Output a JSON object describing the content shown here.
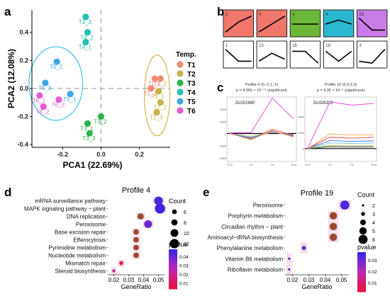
{
  "panel_labels": {
    "a": "a",
    "b": "b",
    "c": "c",
    "d": "d",
    "e": "e"
  },
  "chart_data": [
    {
      "type": "scatter",
      "panel": "a",
      "xlabel": "PCA1 (22.69%)",
      "ylabel": "PCA2 (12.08%)",
      "xlim": [
        -0.36,
        0.36
      ],
      "ylim": [
        -0.42,
        0.56
      ],
      "x_ticks": [
        -0.2,
        0.0,
        0.2
      ],
      "x_tick_labels": [
        "-0.2",
        "0.0",
        "0.2"
      ],
      "y_ticks": [
        -0.4,
        -0.2,
        0.0,
        0.2,
        0.4
      ],
      "y_tick_labels": [
        "-0.4",
        "-0.2",
        "0.0",
        "0.2",
        "0.4"
      ],
      "legend": {
        "title": "Temp.",
        "position": "right"
      },
      "series": [
        {
          "name": "T1",
          "color": "#F08B73",
          "points": [
            {
              "x": 0.28,
              "y": 0.07,
              "label": "T1_3"
            },
            {
              "x": 0.31,
              "y": 0.07,
              "label": "T1_2"
            },
            {
              "x": 0.26,
              "y": 0.0,
              "label": "T1_1"
            }
          ]
        },
        {
          "name": "T2",
          "color": "#C8B34A",
          "points": [
            {
              "x": 0.3,
              "y": -0.02,
              "label": "T2_1"
            },
            {
              "x": 0.31,
              "y": -0.1,
              "label": "T2_2"
            },
            {
              "x": 0.29,
              "y": -0.17,
              "label": "T2_3"
            }
          ]
        },
        {
          "name": "T3",
          "color": "#2CB24A",
          "points": [
            {
              "x": -0.07,
              "y": -0.25,
              "label": "T3_1"
            },
            {
              "x": 0.0,
              "y": -0.2,
              "label": "T3_2"
            },
            {
              "x": -0.06,
              "y": -0.32,
              "label": "T3_3"
            }
          ]
        },
        {
          "name": "T4",
          "color": "#26BFB2",
          "points": [
            {
              "x": -0.08,
              "y": 0.33,
              "label": "T4_1"
            },
            {
              "x": -0.07,
              "y": 0.4,
              "label": "T4_2"
            },
            {
              "x": -0.08,
              "y": 0.51,
              "label": "T4_3"
            }
          ]
        },
        {
          "name": "T5",
          "color": "#3FA7E0",
          "points": [
            {
              "x": -0.16,
              "y": -0.04,
              "label": "T5_1"
            },
            {
              "x": -0.23,
              "y": 0.19,
              "label": "T5_2"
            },
            {
              "x": -0.29,
              "y": 0.04,
              "label": "T5_3"
            }
          ]
        },
        {
          "name": "T6",
          "color": "#E85BD0",
          "points": [
            {
              "x": -0.32,
              "y": -0.05,
              "label": "T6_1"
            },
            {
              "x": -0.3,
              "y": -0.13,
              "label": "T6_2"
            },
            {
              "x": -0.22,
              "y": -0.08,
              "label": "T6_3"
            }
          ]
        }
      ]
    },
    {
      "type": "line",
      "panel": "b",
      "profiles": [
        {
          "id": "2",
          "color": "#F0776A",
          "shape": [
            0.1,
            0.6,
            0.9
          ]
        },
        {
          "id": "0",
          "color": "#F0776A",
          "shape": [
            0.1,
            0.5,
            0.9
          ]
        },
        {
          "id": "6",
          "color": "#6CB73A",
          "shape": [
            0.5,
            0.5,
            0.5
          ]
        },
        {
          "id": "4",
          "color": "#29B8CF",
          "shape": [
            0.5,
            0.7,
            0.5
          ]
        },
        {
          "id": "19",
          "color": "#C97BE6",
          "shape": [
            0.8,
            0.2,
            0.2
          ]
        },
        {
          "id": "1",
          "color": "#FFFFFF",
          "shape": [
            0.8,
            0.2,
            0.2
          ]
        },
        {
          "id": "13",
          "color": "#FFFFFF",
          "shape": [
            0.2,
            0.6,
            0.3
          ]
        },
        {
          "id": "16",
          "color": "#FFFFFF",
          "shape": [
            0.7,
            0.7,
            0.1
          ]
        },
        {
          "id": "18",
          "color": "#FFFFFF",
          "shape": [
            0.7,
            0.2,
            0.7
          ]
        },
        {
          "id": "3",
          "color": "#FFFFFF",
          "shape": [
            0.2,
            0.1,
            0.8
          ]
        }
      ]
    },
    {
      "type": "line",
      "panel": "c",
      "plots": [
        {
          "title": "Profile 4 (0,-2,1,-1)",
          "subtitle": "p = 4.056 × 10⁻⁵² (significant)",
          "gene": "Dc021840",
          "x_ticks": [
            "T1.2",
            "T3",
            "T5",
            "T6.5"
          ],
          "y_ticks": [
            -2000,
            -1000,
            0,
            1000,
            2000
          ],
          "ylim": [
            -2300,
            3000
          ],
          "lines": [
            {
              "color": "#E63FE0",
              "values": [
                50,
                80,
                2900,
                1200
              ]
            },
            {
              "color": "#F5A04A",
              "values": [
                0,
                -500,
                250,
                -300
              ]
            },
            {
              "color": "#3A6FE0",
              "values": [
                0,
                -400,
                200,
                -200
              ]
            },
            {
              "color": "#E8433A",
              "values": [
                0,
                -450,
                350,
                -150
              ]
            },
            {
              "color": "#F07ABF",
              "values": [
                0,
                -350,
                150,
                -250
              ]
            },
            {
              "color": "#6AC1E0",
              "values": [
                0,
                -300,
                120,
                -100
              ]
            },
            {
              "color": "#9BCB4A",
              "values": [
                0,
                -250,
                100,
                -80
              ]
            }
          ]
        },
        {
          "title": "Profile 19 (0,4,3,3)",
          "subtitle": "p = 4.35 × 10⁻⁶ (significant)",
          "gene": "Dc026323",
          "x_ticks": [
            "T1.2",
            "T3",
            "T5",
            "T6.5"
          ],
          "y_ticks": [
            0,
            1000,
            2000
          ],
          "ylim": [
            -800,
            3200
          ],
          "lines": [
            {
              "color": "#E63FE0",
              "values": [
                30,
                2900,
                2700,
                2800
              ]
            },
            {
              "color": "#F5A04A",
              "values": [
                0,
                900,
                850,
                850
              ]
            },
            {
              "color": "#E8433A",
              "values": [
                0,
                700,
                650,
                700
              ]
            },
            {
              "color": "#3A6FE0",
              "values": [
                0,
                500,
                450,
                480
              ]
            },
            {
              "color": "#6AC1E0",
              "values": [
                0,
                350,
                320,
                340
              ]
            },
            {
              "color": "#9BCB4A",
              "values": [
                0,
                200,
                180,
                190
              ]
            },
            {
              "color": "#222222",
              "values": [
                0,
                120,
                100,
                110
              ]
            }
          ]
        }
      ]
    },
    {
      "type": "scatter",
      "panel": "d",
      "title": "Profile 4",
      "xlabel": "GeneRatio",
      "xlim": [
        0.016,
        0.054
      ],
      "x_ticks": [
        0.02,
        0.03,
        0.04,
        0.05
      ],
      "x_tick_labels": [
        "0.02",
        "0.03",
        "0.04",
        "0.05"
      ],
      "size_legend": {
        "title": "Count",
        "values": [
          6,
          8,
          10,
          12
        ]
      },
      "color_legend": {
        "title": "pvalue",
        "ticks": [
          0.04,
          0.03,
          0.02,
          0.01
        ],
        "tick_labels": [
          "0.04",
          "0.03",
          "0.02",
          "0.01"
        ],
        "range": [
          0.003,
          0.048
        ]
      },
      "categories": [
        "mRNA surveillance pathway",
        "MAPK signaling pathway − plant",
        "DNA replication",
        "Peroxisome",
        "Base excision repair",
        "Efferocytosis",
        "Pyrimidine metabolism",
        "Nucleotide metabolism",
        "Mismatch repair",
        "Steroid biosynthesis"
      ],
      "points": [
        {
          "term": "mRNA surveillance pathway",
          "gene_ratio": 0.05,
          "count": 11,
          "pvalue": 0.045
        },
        {
          "term": "MAPK signaling pathway − plant",
          "gene_ratio": 0.051,
          "count": 13,
          "pvalue": 0.048
        },
        {
          "term": "DNA replication",
          "gene_ratio": 0.038,
          "count": 8,
          "pvalue": 0.009
        },
        {
          "term": "Peroxisome",
          "gene_ratio": 0.043,
          "count": 10,
          "pvalue": 0.04
        },
        {
          "term": "Base excision repair",
          "gene_ratio": 0.035,
          "count": 7,
          "pvalue": 0.008
        },
        {
          "term": "Efferocytosis",
          "gene_ratio": 0.035,
          "count": 7,
          "pvalue": 0.01
        },
        {
          "term": "Pyrimidine metabolism",
          "gene_ratio": 0.035,
          "count": 7,
          "pvalue": 0.012
        },
        {
          "term": "Nucleotide metabolism",
          "gene_ratio": 0.035,
          "count": 7,
          "pvalue": 0.011
        },
        {
          "term": "Mismatch repair",
          "gene_ratio": 0.025,
          "count": 5,
          "pvalue": 0.004
        },
        {
          "term": "Steroid biosynthesis",
          "gene_ratio": 0.02,
          "count": 4,
          "pvalue": 0.02
        }
      ]
    },
    {
      "type": "scatter",
      "panel": "e",
      "title": "Profile 19",
      "xlabel": "GeneRatio",
      "xlim": [
        0.0155,
        0.0545
      ],
      "x_ticks": [
        0.02,
        0.03,
        0.04,
        0.05
      ],
      "x_tick_labels": [
        "0.02",
        "0.03",
        "0.04",
        "0.05"
      ],
      "size_legend": {
        "title": "Count",
        "values": [
          2,
          3,
          4,
          5,
          6
        ]
      },
      "color_legend": {
        "title": "pvalue",
        "ticks": [
          0.03,
          0.02,
          0.01
        ],
        "tick_labels": [
          "0.03",
          "0.02",
          "0.01"
        ],
        "range": [
          0.002,
          0.037
        ]
      },
      "categories": [
        "Peroxisome",
        "Porphyrin metabolism",
        "Circadian rhythm − plant",
        "Aminoacyl−tRNA biosynthesis",
        "Phenylalanine metabolism",
        "Vitamin B6 metabolism",
        "Riboflavin metabolism"
      ],
      "points": [
        {
          "term": "Peroxisome",
          "gene_ratio": 0.052,
          "count": 6,
          "pvalue": 0.035
        },
        {
          "term": "Porphyrin metabolism",
          "gene_ratio": 0.045,
          "count": 5,
          "pvalue": 0.006
        },
        {
          "term": "Circadian rhythm − plant",
          "gene_ratio": 0.045,
          "count": 5,
          "pvalue": 0.008
        },
        {
          "term": "Aminoacyl−tRNA biosynthesis",
          "gene_ratio": 0.045,
          "count": 5,
          "pvalue": 0.007
        },
        {
          "term": "Phenylalanine metabolism",
          "gene_ratio": 0.027,
          "count": 3,
          "pvalue": 0.036
        },
        {
          "term": "Vitamin B6 metabolism",
          "gene_ratio": 0.018,
          "count": 2,
          "pvalue": 0.033
        },
        {
          "term": "Riboflavin metabolism",
          "gene_ratio": 0.018,
          "count": 2,
          "pvalue": 0.034
        }
      ]
    }
  ]
}
